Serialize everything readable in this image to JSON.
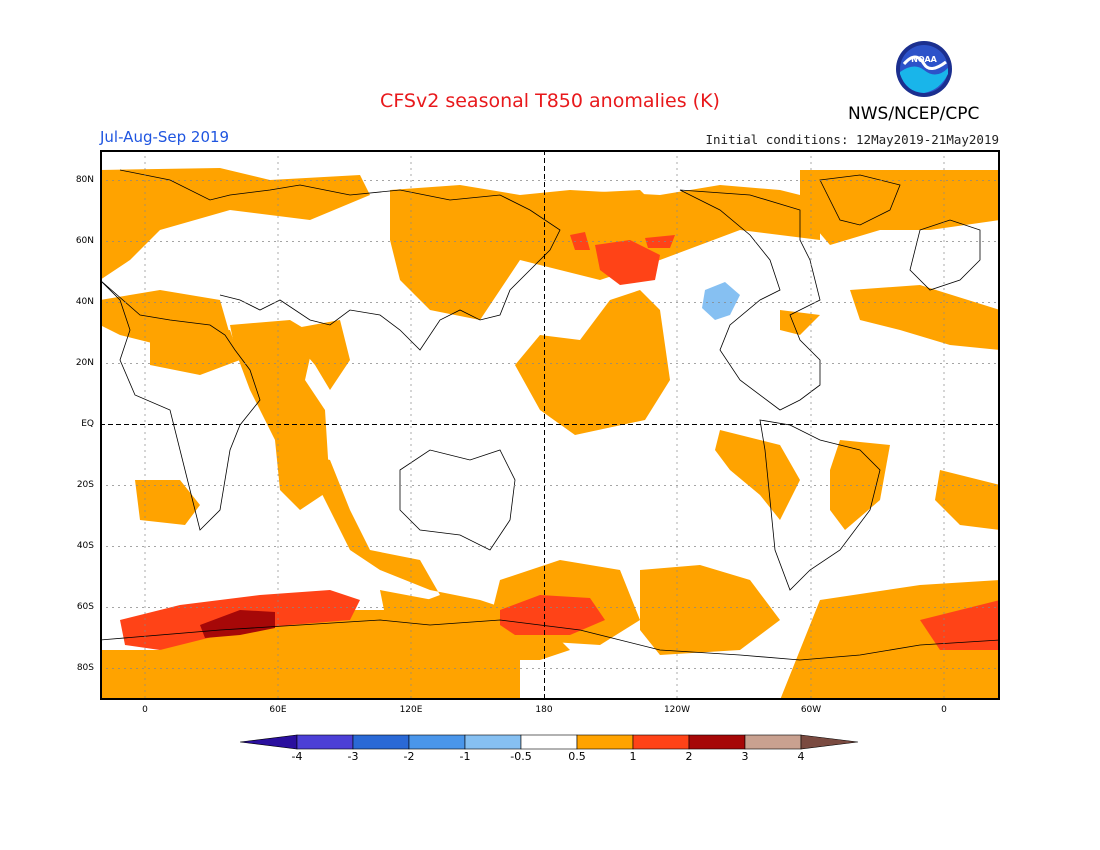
{
  "header": {
    "title": "CFSv2 seasonal T850 anomalies (K)",
    "period": "Jul-Aug-Sep 2019",
    "initial_conditions": "Initial conditions: 12May2019-21May2019",
    "organization": "NWS/NCEP/CPC",
    "logo_text": "NOAA"
  },
  "axes": {
    "lat_labels": [
      "80N",
      "60N",
      "40N",
      "20N",
      "EQ",
      "20S",
      "40S",
      "60S",
      "80S"
    ],
    "lon_labels": [
      "0",
      "60E",
      "120E",
      "180",
      "120W",
      "60W",
      "0"
    ]
  },
  "colorbar": {
    "tick_labels": [
      "-4",
      "-3",
      "-2",
      "-1",
      "-0.5",
      "0.5",
      "1",
      "2",
      "3",
      "4"
    ],
    "colors": [
      "#2a0f9e",
      "#4c3fd6",
      "#2a69d6",
      "#4a96ea",
      "#86c0f2",
      "#ffffff",
      "#ffa300",
      "#ff4317",
      "#a60808",
      "#c9a190",
      "#7a4a40"
    ]
  }
}
